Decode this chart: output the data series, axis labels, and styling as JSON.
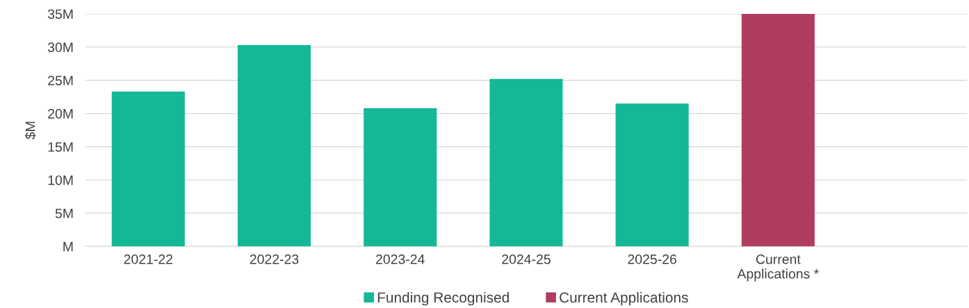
{
  "chart_data": {
    "type": "bar",
    "ylabel": "$M",
    "categories": [
      "2021-22",
      "2022-23",
      "2023-24",
      "2024-25",
      "2025-26",
      "Current\nApplications *",
      null
    ],
    "series": [
      {
        "name": "Funding Recognised",
        "color": "#14b897",
        "values": [
          23.3,
          30.3,
          20.8,
          25.2,
          21.5,
          null,
          null
        ]
      },
      {
        "name": "Current Applications",
        "color": "#b03d5f",
        "values": [
          null,
          null,
          null,
          null,
          null,
          35.0,
          null
        ]
      }
    ],
    "stacked": true,
    "ylim": [
      0,
      35
    ],
    "yticks": [
      {
        "value": 0,
        "label": "M"
      },
      {
        "value": 5,
        "label": "5M"
      },
      {
        "value": 10,
        "label": "10M"
      },
      {
        "value": 15,
        "label": "15M"
      },
      {
        "value": 20,
        "label": "20M"
      },
      {
        "value": 25,
        "label": "25M"
      },
      {
        "value": 30,
        "label": "30M"
      },
      {
        "value": 35,
        "label": "35M"
      }
    ],
    "grid": "y",
    "legend": "bottom"
  }
}
